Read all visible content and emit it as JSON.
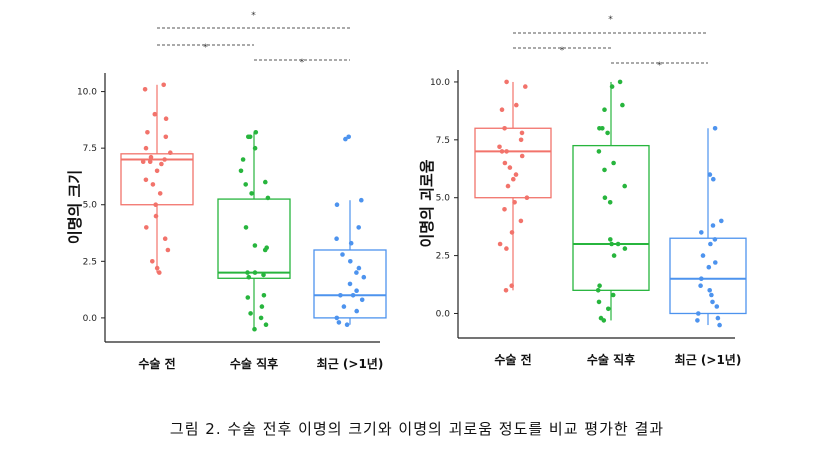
{
  "caption": "그림 2. 수술 전후 이명의 크기와 이명의 괴로움 정도를 비교 평가한 결과",
  "colors": {
    "group1": "#f2736b",
    "group2": "#27b53d",
    "group3": "#4d93ee",
    "axis": "#222222",
    "bracket": "#555555"
  },
  "chart_data": [
    {
      "type": "box",
      "ylabel": "이명의 크기",
      "categories": [
        "수술 전",
        "수술 직후",
        "최근 (>1년)"
      ],
      "yticks": [
        "0.0",
        "2.5",
        "5.0",
        "7.5",
        "10.0"
      ],
      "ylim": [
        -0.8,
        10.6
      ],
      "boxes": [
        {
          "q1": 5.0,
          "median": 7.0,
          "q3": 7.25,
          "whisker_low": 2.0,
          "whisker_high": 10.3
        },
        {
          "q1": 1.75,
          "median": 2.0,
          "q3": 5.25,
          "whisker_low": -0.5,
          "whisker_high": 8.2
        },
        {
          "q1": 0.0,
          "median": 1.0,
          "q3": 3.0,
          "whisker_low": -0.3,
          "whisker_high": 5.2
        }
      ],
      "points": [
        [
          10.3,
          10.1,
          9.0,
          8.8,
          8.2,
          8.0,
          7.5,
          7.3,
          7.1,
          7.0,
          6.9,
          6.9,
          6.8,
          6.5,
          6.1,
          5.9,
          5.5,
          5.0,
          4.5,
          4.0,
          3.5,
          3.0,
          2.5,
          2.2,
          2.0
        ],
        [
          8.2,
          8.0,
          8.0,
          7.5,
          7.0,
          6.5,
          6.0,
          5.9,
          5.5,
          5.3,
          4.0,
          3.2,
          3.1,
          3.0,
          2.0,
          2.0,
          1.9,
          1.8,
          1.0,
          0.9,
          0.5,
          0.2,
          0.0,
          -0.3,
          -0.5
        ],
        [
          8.0,
          7.9,
          5.2,
          5.0,
          4.0,
          3.5,
          3.3,
          2.8,
          2.5,
          2.2,
          2.0,
          1.8,
          1.5,
          1.2,
          1.0,
          1.0,
          0.8,
          0.5,
          0.3,
          0.0,
          -0.2,
          -0.3
        ]
      ],
      "brackets": [
        {
          "from": 0,
          "to": 2,
          "label": "*"
        },
        {
          "from": 0,
          "to": 1,
          "label": "*"
        },
        {
          "from": 1,
          "to": 2,
          "label": "*"
        }
      ]
    },
    {
      "type": "box",
      "ylabel": "이명의 괴로움",
      "categories": [
        "수술 전",
        "수술 직후",
        "최근 (>1년)"
      ],
      "yticks": [
        "0.0",
        "2.5",
        "5.0",
        "7.5",
        "10.0"
      ],
      "ylim": [
        -0.8,
        10.3
      ],
      "boxes": [
        {
          "q1": 5.0,
          "median": 7.0,
          "q3": 8.0,
          "whisker_low": 1.0,
          "whisker_high": 10.0
        },
        {
          "q1": 1.0,
          "median": 3.0,
          "q3": 7.25,
          "whisker_low": -0.3,
          "whisker_high": 10.0
        },
        {
          "q1": 0.0,
          "median": 1.5,
          "q3": 3.25,
          "whisker_low": -0.5,
          "whisker_high": 8.0
        }
      ],
      "points": [
        [
          10.0,
          9.8,
          9.0,
          8.8,
          8.0,
          7.8,
          7.5,
          7.2,
          7.0,
          7.0,
          6.8,
          6.5,
          6.3,
          6.0,
          5.8,
          5.5,
          5.0,
          4.8,
          4.5,
          4.0,
          3.5,
          3.0,
          2.8,
          1.2,
          1.0
        ],
        [
          10.0,
          9.8,
          9.0,
          8.8,
          8.0,
          8.0,
          7.8,
          7.0,
          6.5,
          6.2,
          5.5,
          5.0,
          4.8,
          3.2,
          3.0,
          3.0,
          2.8,
          2.5,
          1.2,
          1.0,
          0.8,
          0.5,
          0.2,
          -0.2,
          -0.3
        ],
        [
          8.0,
          6.0,
          5.8,
          4.0,
          3.8,
          3.5,
          3.2,
          3.0,
          2.5,
          2.2,
          2.0,
          1.5,
          1.2,
          1.0,
          0.8,
          0.5,
          0.3,
          0.0,
          -0.2,
          -0.3,
          -0.5
        ]
      ],
      "brackets": [
        {
          "from": 0,
          "to": 2,
          "label": "*"
        },
        {
          "from": 0,
          "to": 1,
          "label": "*"
        },
        {
          "from": 1,
          "to": 2,
          "label": "*"
        }
      ]
    }
  ]
}
